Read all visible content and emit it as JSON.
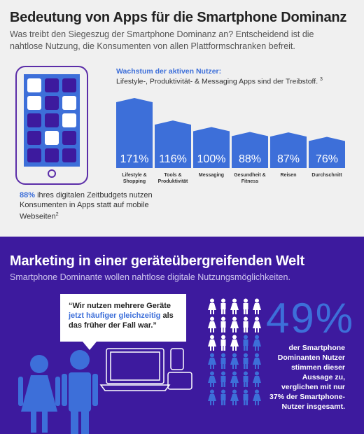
{
  "top": {
    "title": "Bedeutung von Apps für die Smartphone Dominanz",
    "subtitle": "Was treibt den Siegeszug der Smartphone Dominanz an? Entscheidend ist die nahtlose Nutzung, die Konsumenten von allen Plattformschranken befreit.",
    "stat_pct": "88%",
    "stat_text": " ihres digitalen Zeitbudgets nutzen Konsumenten in Apps statt auf mobile Webseiten",
    "stat_footnote": "2"
  },
  "chart_data": {
    "type": "bar",
    "title": "Wachstum der aktiven Nutzer:",
    "subtitle": "Lifestyle-, Produktivität- & Messaging Apps sind der Treibstoff.",
    "subtitle_footnote": "3",
    "categories": [
      "Lifestyle & Shopping",
      "Tools & Produktivität",
      "Messaging",
      "Gesundheit & Fitness",
      "Reisen",
      "Durchschnitt"
    ],
    "category_lines": [
      [
        "Lifestyle &",
        "Shopping"
      ],
      [
        "Tools &",
        "Produktivität"
      ],
      [
        "Messaging"
      ],
      [
        "Gesundheit &",
        "Fitness"
      ],
      [
        "Reisen"
      ],
      [
        "Durchschnitt"
      ]
    ],
    "values": [
      171,
      116,
      100,
      88,
      87,
      76
    ],
    "value_labels": [
      "171%",
      "116%",
      "100%",
      "88%",
      "87%",
      "76%"
    ],
    "bar_color": "#3d6fd9"
  },
  "bottom": {
    "title": "Marketing in einer geräteübergreifenden Welt",
    "subtitle": "Smartphone Dominante wollen nahtlose digitale Nutzungsmöglichkeiten.",
    "quote_a": "“Wir nutzen mehrere Geräte ",
    "quote_b": "jetzt häufiger gleichzeitig",
    "quote_c": " als das früher der Fall war.”",
    "big_pct": "49%",
    "description": "der Smartphone Dominanten Nutzer stimmen dieser Aussage zu, verglichen mit nur 37% der Smartphone-Nutzer insgesamt.",
    "people_highlight_fraction": 0.49
  },
  "colors": {
    "accent": "#3d6fd9",
    "purple": "#3d1a9e",
    "phone_border": "#5b2da8"
  }
}
